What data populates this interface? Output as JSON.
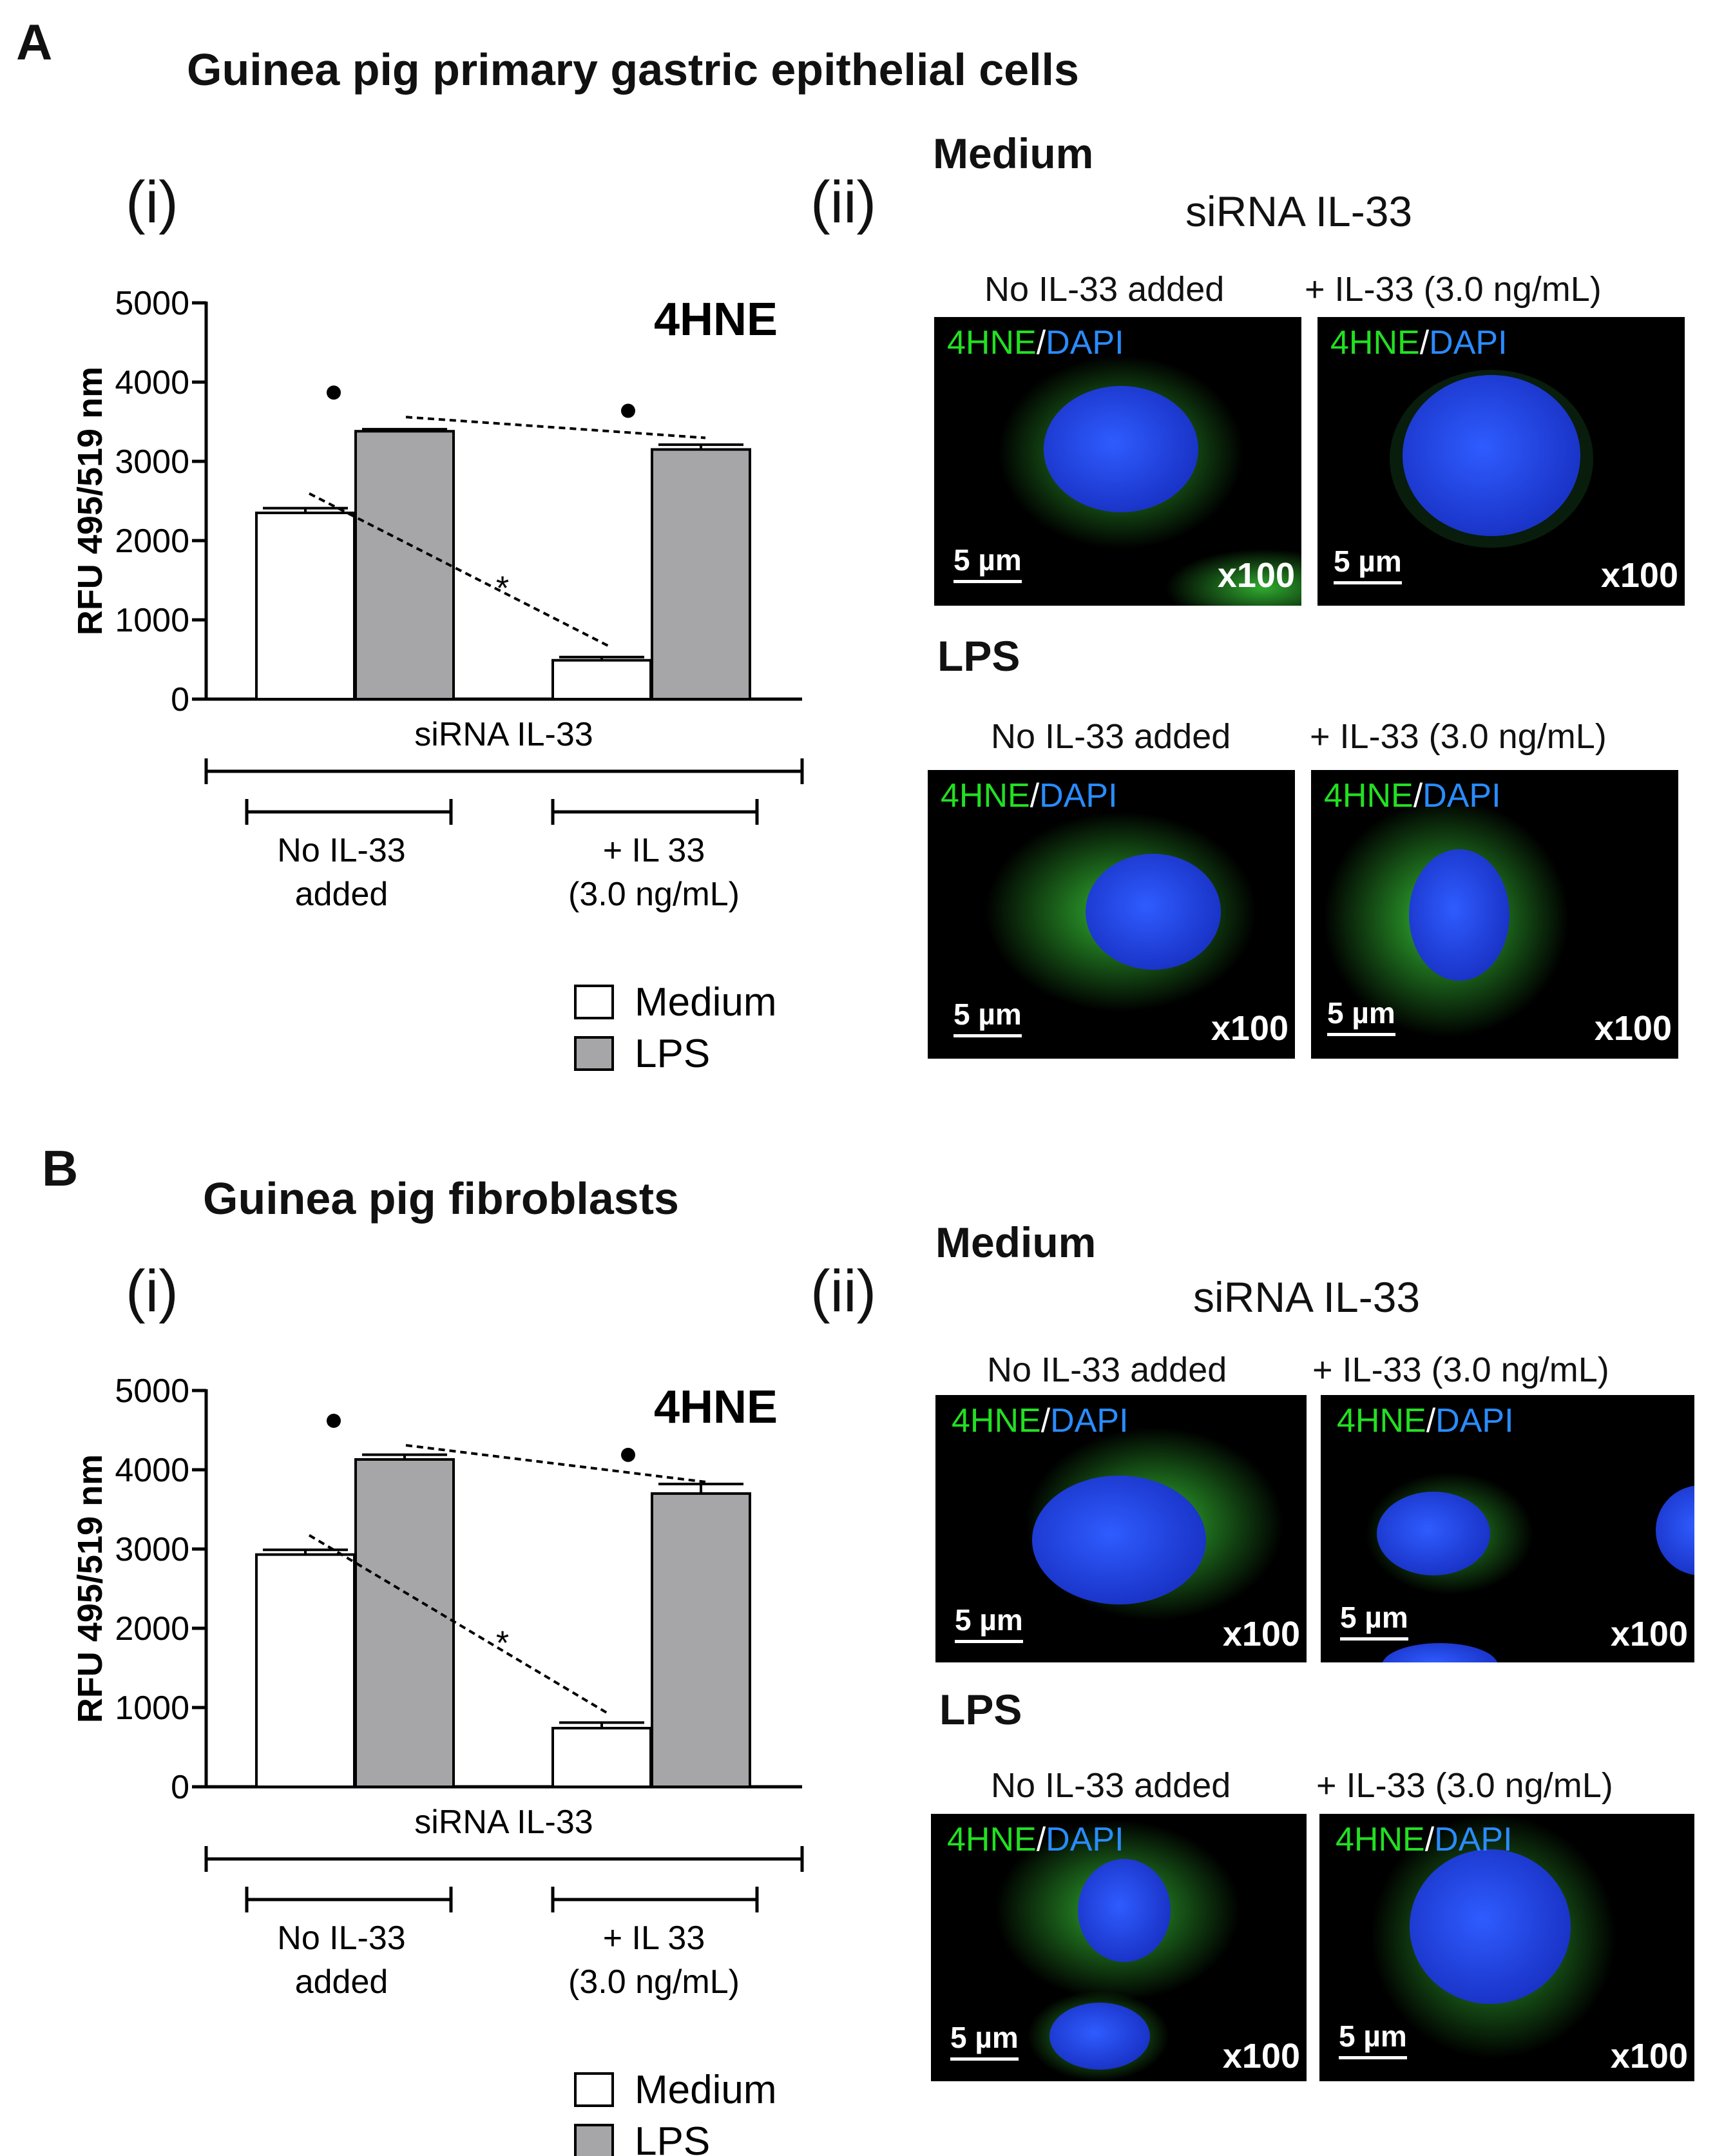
{
  "panels": [
    {
      "letter": "A",
      "title": "Guinea pig primary gastric epithelial cells",
      "sub_i": "(i)",
      "sub_ii": "(ii)",
      "conditions": [
        "Medium",
        "LPS"
      ],
      "sirna_header": "siRNA IL-33",
      "column_headers": [
        "No IL-33  added",
        "+ IL-33 (3.0 ng/mL)"
      ],
      "stain": {
        "green": "4HNE",
        "sep": "/",
        "blue": "DAPI"
      },
      "scale_bar": "5 µm",
      "magnification": "x100"
    },
    {
      "letter": "B",
      "title": "Guinea pig fibroblasts",
      "sub_i": "(i)",
      "sub_ii": "(ii)",
      "conditions": [
        "Medium",
        "LPS"
      ],
      "sirna_header": "siRNA IL-33",
      "column_headers": [
        "No IL-33  added",
        "+ IL-33 (3.0 ng/mL)"
      ],
      "stain": {
        "green": "4HNE",
        "sep": "/",
        "blue": "DAPI"
      },
      "scale_bar": "5 µm",
      "magnification": "x100"
    }
  ],
  "chart_data": [
    {
      "type": "bar",
      "panel": "A(i)",
      "title": "4HNE",
      "ylabel": "RFU 495/519 nm",
      "ylim": [
        0,
        5000
      ],
      "yticks": [
        0,
        1000,
        2000,
        3000,
        4000,
        5000
      ],
      "group_header": "siRNA IL-33",
      "categories": [
        "No IL-33 added",
        "+ IL 33 (3.0 ng/mL)"
      ],
      "category_lines": [
        [
          "No IL-33",
          "added"
        ],
        [
          "+ IL 33",
          "(3.0 ng/mL)"
        ]
      ],
      "series": [
        {
          "name": "Medium",
          "color": "#ffffff",
          "values": [
            2350,
            490
          ],
          "errors": [
            60,
            40
          ]
        },
        {
          "name": "LPS",
          "color": "#a6a6a8",
          "values": [
            3380,
            3150
          ],
          "errors": [
            25,
            60
          ]
        }
      ],
      "annotations": {
        "significance": "*",
        "dot": "•"
      },
      "legend": [
        "Medium",
        "LPS"
      ]
    },
    {
      "type": "bar",
      "panel": "B(i)",
      "title": "4HNE",
      "ylabel": "RFU 495/519 nm",
      "ylim": [
        0,
        5000
      ],
      "yticks": [
        0,
        1000,
        2000,
        3000,
        4000,
        5000
      ],
      "group_header": "siRNA IL-33",
      "categories": [
        "No IL-33 added",
        "+ IL 33 (3.0 ng/mL)"
      ],
      "category_lines": [
        [
          "No IL-33",
          "added"
        ],
        [
          "+ IL 33",
          "(3.0 ng/mL)"
        ]
      ],
      "series": [
        {
          "name": "Medium",
          "color": "#ffffff",
          "values": [
            2930,
            740
          ],
          "errors": [
            60,
            70
          ]
        },
        {
          "name": "LPS",
          "color": "#a6a6a8",
          "values": [
            4130,
            3700
          ],
          "errors": [
            60,
            120
          ]
        }
      ],
      "annotations": {
        "significance": "*",
        "dot": "•"
      },
      "legend": [
        "Medium",
        "LPS"
      ]
    }
  ]
}
